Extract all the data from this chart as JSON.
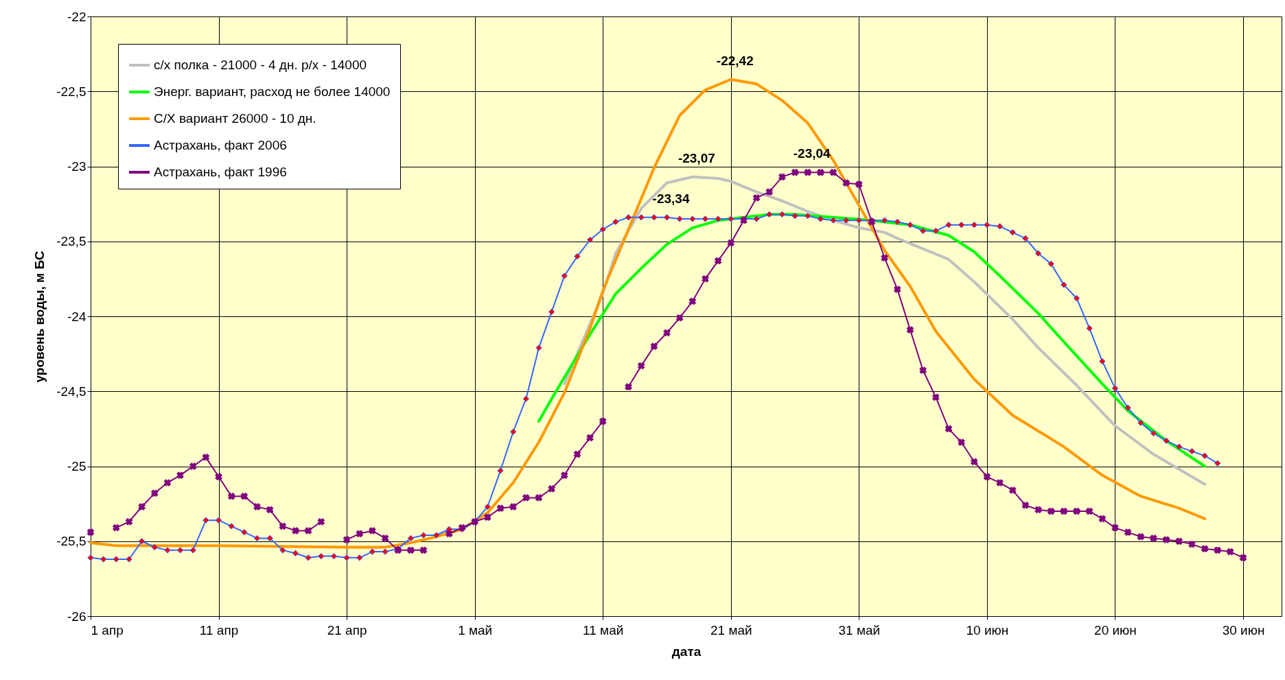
{
  "chart_data": {
    "type": "line",
    "xlabel": "дата",
    "ylabel": "уровень воды, м БС",
    "x": [
      "--04-01",
      "--04-02",
      "--04-03",
      "--04-04",
      "--04-05",
      "--04-06",
      "--04-07",
      "--04-08",
      "--04-09",
      "--04-10",
      "--04-11",
      "--04-12",
      "--04-13",
      "--04-14",
      "--04-15",
      "--04-16",
      "--04-17",
      "--04-18",
      "--04-19",
      "--04-20",
      "--04-21",
      "--04-22",
      "--04-23",
      "--04-24",
      "--04-25",
      "--04-26",
      "--04-27",
      "--04-28",
      "--04-29",
      "--04-30",
      "--05-01",
      "--05-02",
      "--05-03",
      "--05-04",
      "--05-05",
      "--05-06",
      "--05-07",
      "--05-08",
      "--05-09",
      "--05-10",
      "--05-11",
      "--05-12",
      "--05-13",
      "--05-14",
      "--05-15",
      "--05-16",
      "--05-17",
      "--05-18",
      "--05-19",
      "--05-20",
      "--05-21",
      "--05-22",
      "--05-23",
      "--05-24",
      "--05-25",
      "--05-26",
      "--05-27",
      "--05-28",
      "--05-29",
      "--05-30",
      "--05-31",
      "--06-01",
      "--06-02",
      "--06-03",
      "--06-04",
      "--06-05",
      "--06-06",
      "--06-07",
      "--06-08",
      "--06-09",
      "--06-10",
      "--06-11",
      "--06-12",
      "--06-13",
      "--06-14",
      "--06-15",
      "--06-16",
      "--06-17",
      "--06-18",
      "--06-19",
      "--06-20",
      "--06-21",
      "--06-22",
      "--06-23",
      "--06-24",
      "--06-25",
      "--06-26",
      "--06-27",
      "--06-28",
      "--06-29",
      "--06-30"
    ],
    "series": [
      {
        "name": "с/х полка - 21000 - 4 дн. р/х - 14000",
        "color": "#c0c0c0",
        "marker": "none",
        "x": [
          "--05-08",
          "--05-11",
          "--05-12",
          "--05-14",
          "--05-16",
          "--05-18",
          "--05-20",
          "--05-21",
          "--05-23",
          "--05-25",
          "--05-27",
          "--05-29",
          "--05-31",
          "--06-02",
          "--06-03",
          "--06-07",
          "--06-09",
          "--06-12",
          "--06-14",
          "--06-17",
          "--06-20",
          "--06-23",
          "--06-27"
        ],
        "values": [
          -24.45,
          -23.85,
          -23.58,
          -23.28,
          -23.11,
          -23.07,
          -23.08,
          -23.1,
          -23.17,
          -23.23,
          -23.3,
          -23.36,
          -23.41,
          -23.44,
          -23.48,
          -23.62,
          -23.77,
          -24.02,
          -24.21,
          -24.46,
          -24.73,
          -24.92,
          -25.12
        ]
      },
      {
        "name": "Энерг. вариант, расход не более 14000",
        "color": "#00ff00",
        "marker": "none",
        "x": [
          "--05-06",
          "--05-07",
          "--05-10",
          "--05-12",
          "--05-14",
          "--05-16",
          "--05-18",
          "--05-20",
          "--05-22",
          "--05-24",
          "--05-26",
          "--05-29",
          "--06-01",
          "--06-04",
          "--06-07",
          "--06-09",
          "--06-11",
          "--06-14",
          "--06-16",
          "--06-19",
          "--06-21",
          "--06-24",
          "--06-27"
        ],
        "values": [
          -24.7,
          -24.55,
          -24.12,
          -23.85,
          -23.68,
          -23.52,
          -23.41,
          -23.36,
          -23.34,
          -23.32,
          -23.32,
          -23.34,
          -23.36,
          -23.39,
          -23.46,
          -23.57,
          -23.73,
          -23.98,
          -24.17,
          -24.45,
          -24.63,
          -24.83,
          -25.0
        ]
      },
      {
        "name": "С/Х вариант 26000 - 10 дн.",
        "color": "#ff9900",
        "marker": "none",
        "x": [
          "--04-01",
          "--04-03",
          "--04-11",
          "--04-21",
          "--04-24",
          "--04-26",
          "--04-28",
          "--04-30",
          "--05-02",
          "--05-04",
          "--05-06",
          "--05-08",
          "--05-10",
          "--05-11",
          "--05-13",
          "--05-15",
          "--05-17",
          "--05-19",
          "--05-21",
          "--05-23",
          "--05-25",
          "--05-27",
          "--05-29",
          "--05-31",
          "--06-02",
          "--06-04",
          "--06-06",
          "--06-09",
          "--06-12",
          "--06-16",
          "--06-19",
          "--06-22",
          "--06-25",
          "--06-27"
        ],
        "values": [
          -25.51,
          -25.53,
          -25.53,
          -25.54,
          -25.54,
          -25.51,
          -25.47,
          -25.42,
          -25.31,
          -25.11,
          -24.84,
          -24.51,
          -24.08,
          -23.83,
          -23.42,
          -23.01,
          -22.66,
          -22.49,
          -22.42,
          -22.45,
          -22.56,
          -22.71,
          -22.96,
          -23.26,
          -23.56,
          -23.8,
          -24.1,
          -24.42,
          -24.66,
          -24.87,
          -25.06,
          -25.2,
          -25.28,
          -25.35
        ]
      },
      {
        "name": "Астрахань, факт 2006",
        "color": "#3366ff",
        "marker": "diamond",
        "values": [
          -25.61,
          -25.62,
          -25.62,
          -25.62,
          -25.5,
          -25.54,
          -25.56,
          -25.56,
          -25.56,
          -25.36,
          -25.36,
          -25.4,
          -25.44,
          -25.48,
          -25.48,
          -25.56,
          -25.58,
          -25.61,
          -25.6,
          -25.6,
          -25.61,
          -25.61,
          -25.57,
          -25.57,
          -25.55,
          -25.48,
          -25.46,
          -25.46,
          -25.42,
          -25.42,
          -25.37,
          -25.27,
          -25.03,
          -24.77,
          -24.55,
          -24.21,
          -23.97,
          -23.73,
          -23.6,
          -23.49,
          -23.42,
          -23.37,
          -23.34,
          -23.34,
          -23.34,
          -23.34,
          -23.35,
          -23.35,
          -23.35,
          -23.35,
          -23.35,
          -23.35,
          -23.35,
          -23.32,
          -23.32,
          -23.33,
          -23.33,
          -23.35,
          -23.36,
          -23.36,
          -23.36,
          -23.36,
          -23.36,
          -23.37,
          -23.39,
          -23.43,
          -23.43,
          -23.39,
          -23.39,
          -23.39,
          -23.39,
          -23.4,
          -23.44,
          -23.48,
          -23.58,
          -23.65,
          -23.79,
          -23.88,
          -24.08,
          -24.3,
          -24.48,
          -24.61,
          -24.71,
          -24.78,
          -24.83,
          -24.87,
          -24.9,
          -24.93,
          -24.98,
          null,
          null
        ]
      },
      {
        "name": "Астрахань, факт 1996",
        "color": "#800080",
        "marker": "cross",
        "values": [
          -25.44,
          null,
          -25.41,
          -25.37,
          -25.27,
          -25.18,
          -25.11,
          -25.06,
          -25.0,
          -24.94,
          -25.07,
          -25.2,
          -25.2,
          -25.27,
          -25.29,
          -25.4,
          -25.43,
          -25.43,
          -25.37,
          null,
          -25.49,
          -25.45,
          -25.43,
          -25.48,
          -25.56,
          -25.56,
          -25.56,
          null,
          -25.45,
          -25.41,
          -25.37,
          -25.34,
          -25.28,
          -25.27,
          -25.21,
          -25.21,
          -25.15,
          -25.06,
          -24.92,
          -24.81,
          -24.7,
          null,
          -24.47,
          -24.33,
          -24.2,
          -24.11,
          -24.01,
          -23.9,
          -23.75,
          -23.63,
          -23.51,
          -23.36,
          -23.21,
          -23.17,
          -23.07,
          -23.04,
          -23.04,
          -23.04,
          -23.04,
          -23.11,
          -23.12,
          -23.37,
          -23.61,
          -23.82,
          -24.09,
          -24.36,
          -24.54,
          -24.75,
          -24.84,
          -24.97,
          -25.07,
          -25.11,
          -25.16,
          -25.26,
          -25.29,
          -25.3,
          -25.3,
          -25.3,
          -25.3,
          -25.35,
          -25.41,
          -25.44,
          -25.47,
          -25.48,
          -25.49,
          -25.5,
          -25.52,
          -25.55,
          -25.56,
          -25.57,
          -25.61
        ]
      }
    ],
    "annotations": [
      {
        "text": "-22,42",
        "x": "--05-21",
        "y": -22.42
      },
      {
        "text": "-23,07",
        "x": "--05-18",
        "y": -23.07
      },
      {
        "text": "-23,04",
        "x": "--05-27",
        "y": -23.04
      },
      {
        "text": "-23,34",
        "x": "--05-16",
        "y": -23.34
      }
    ],
    "xlim": [
      "--04-01",
      "--07-03"
    ],
    "xticks": [
      {
        "value": "--04-01",
        "label": "1 апр"
      },
      {
        "value": "--04-11",
        "label": "11 апр"
      },
      {
        "value": "--04-21",
        "label": "21 апр"
      },
      {
        "value": "--05-01",
        "label": "1 май"
      },
      {
        "value": "--05-11",
        "label": "11 май"
      },
      {
        "value": "--05-21",
        "label": "21 май"
      },
      {
        "value": "--05-31",
        "label": "31 май"
      },
      {
        "value": "--06-10",
        "label": "10 июн"
      },
      {
        "value": "--06-20",
        "label": "20 июн"
      },
      {
        "value": "--06-30",
        "label": "30 июн"
      }
    ],
    "ylim": [
      -26,
      -22
    ],
    "yticks": [
      -26,
      {
        "value": -25.5,
        "label": "-25,5"
      },
      -25,
      {
        "value": -24.5,
        "label": "-24,5"
      },
      -24,
      {
        "value": -23.5,
        "label": "-23,5"
      },
      -23,
      {
        "value": -22.5,
        "label": "-22,5"
      },
      -22
    ],
    "grid": true,
    "legend": "top left"
  }
}
